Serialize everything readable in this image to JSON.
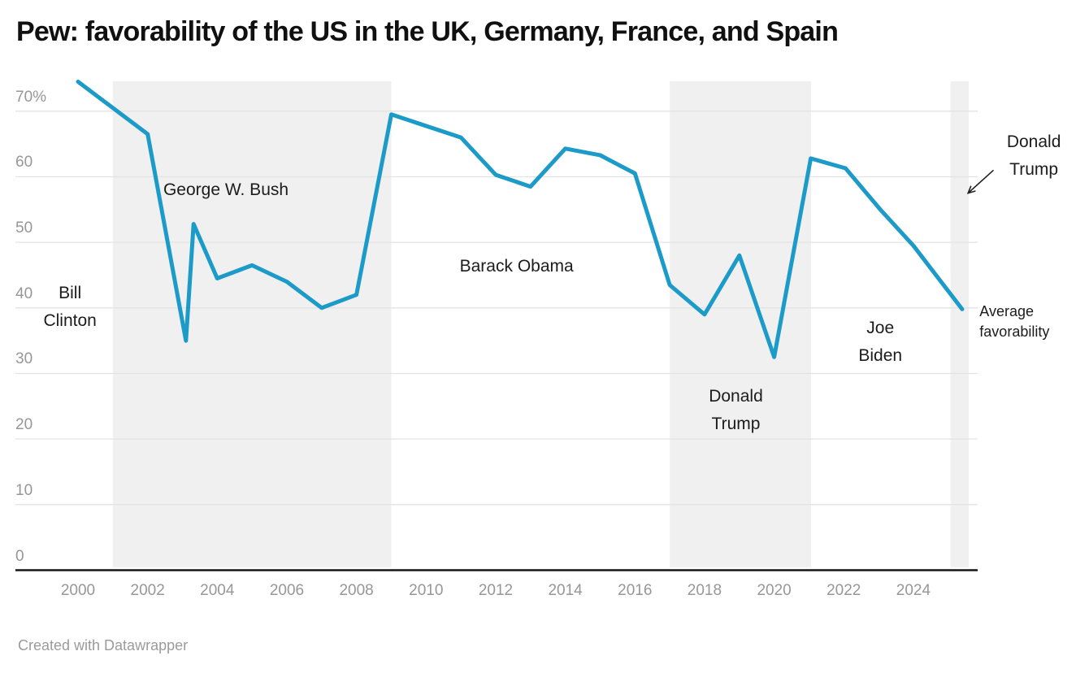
{
  "page": {
    "title": "Pew: favorability of the US in the UK, Germany, France, and Spain",
    "credit": "Created with Datawrapper"
  },
  "chart_data": {
    "type": "line",
    "title": "Pew: favorability of the US in the UK, Germany, France, and Spain",
    "xlabel": "",
    "ylabel": "",
    "ylim": [
      0,
      74.6
    ],
    "xlim": [
      1998.2,
      2025.85
    ],
    "grid": true,
    "series": [
      {
        "name": "Average favorability",
        "points": [
          [
            2000,
            74.5
          ],
          [
            2002,
            66.5
          ],
          [
            2003.1,
            35.0
          ],
          [
            2003.32,
            52.8
          ],
          [
            2004,
            44.5
          ],
          [
            2005,
            46.5
          ],
          [
            2006,
            44.0
          ],
          [
            2007,
            40.0
          ],
          [
            2008,
            42.0
          ],
          [
            2009,
            69.5
          ],
          [
            2011,
            66.0
          ],
          [
            2012,
            60.3
          ],
          [
            2013,
            58.5
          ],
          [
            2014,
            64.3
          ],
          [
            2015,
            63.3
          ],
          [
            2016,
            60.5
          ],
          [
            2017,
            43.5
          ],
          [
            2018,
            39.0
          ],
          [
            2019,
            48.0
          ],
          [
            2020,
            32.5
          ],
          [
            2021.05,
            62.8
          ],
          [
            2022.05,
            61.3
          ],
          [
            2023.05,
            55.0
          ],
          [
            2024,
            49.5
          ],
          [
            2025.4,
            39.8
          ]
        ]
      }
    ],
    "yticks": [
      {
        "value": 0,
        "label": "0"
      },
      {
        "value": 10,
        "label": "10"
      },
      {
        "value": 20,
        "label": "20"
      },
      {
        "value": 30,
        "label": "30"
      },
      {
        "value": 40,
        "label": "40"
      },
      {
        "value": 50,
        "label": "50"
      },
      {
        "value": 60,
        "label": "60"
      },
      {
        "value": 70,
        "label": "70%"
      }
    ],
    "xticks": [
      {
        "value": 2000,
        "label": "2000"
      },
      {
        "value": 2002,
        "label": "2002"
      },
      {
        "value": 2004,
        "label": "2004"
      },
      {
        "value": 2006,
        "label": "2006"
      },
      {
        "value": 2008,
        "label": "2008"
      },
      {
        "value": 2010,
        "label": "2010"
      },
      {
        "value": 2012,
        "label": "2012"
      },
      {
        "value": 2014,
        "label": "2014"
      },
      {
        "value": 2016,
        "label": "2016"
      },
      {
        "value": 2018,
        "label": "2018"
      },
      {
        "value": 2020,
        "label": "2020"
      },
      {
        "value": 2022,
        "label": "2022"
      },
      {
        "value": 2024,
        "label": "2024"
      }
    ],
    "bands": [
      {
        "id": "george-w-bush-term",
        "from": 2001.0,
        "to": 2009.0
      },
      {
        "id": "donald-trump-term-1",
        "from": 2017.0,
        "to": 2021.06
      },
      {
        "id": "donald-trump-term-2",
        "from": 2025.07,
        "to": 2025.59
      }
    ],
    "annotations": [
      {
        "id": "bill-clinton",
        "lines": [
          "Bill",
          "Clinton"
        ],
        "year": 1999.77,
        "value": 40.1,
        "size": 21,
        "line_height": 34,
        "align": "center"
      },
      {
        "id": "george-w-bush",
        "lines": [
          "George W. Bush"
        ],
        "year": 2004.25,
        "value": 57.9,
        "size": 21,
        "line_height": 34,
        "align": "center"
      },
      {
        "id": "barack-obama",
        "lines": [
          "Barack Obama"
        ],
        "year": 2012.6,
        "value": 46.3,
        "size": 21,
        "line_height": 34,
        "align": "center"
      },
      {
        "id": "donald-trump-1",
        "lines": [
          "Donald",
          "Trump"
        ],
        "year": 2018.9,
        "value": 24.4,
        "size": 21,
        "line_height": 34,
        "align": "center"
      },
      {
        "id": "joe-biden",
        "lines": [
          "Joe",
          "Biden"
        ],
        "year": 2023.05,
        "value": 34.8,
        "size": 21,
        "line_height": 34,
        "align": "center"
      },
      {
        "id": "donald-trump-2",
        "lines": [
          "Donald",
          "Trump"
        ],
        "year": 2027.46,
        "value": 63.2,
        "size": 21,
        "line_height": 34,
        "align": "center"
      },
      {
        "id": "average-favorability",
        "lines": [
          "Average",
          "favorability"
        ],
        "year": 2025.9,
        "value": 37.9,
        "size": 18,
        "line_height": 25,
        "align": "left"
      }
    ],
    "arrow": {
      "from_year": 2026.29,
      "from_value": 60.95,
      "to_year": 2025.57,
      "to_value": 57.5
    },
    "colors": {
      "line": "#1c9bc9",
      "band": "#f0f0f0",
      "grid": "#e3e3e3",
      "axis": "#161616",
      "tick_text": "#979797",
      "annotation_text": "#1c1c1c"
    },
    "legend_position": "none"
  }
}
